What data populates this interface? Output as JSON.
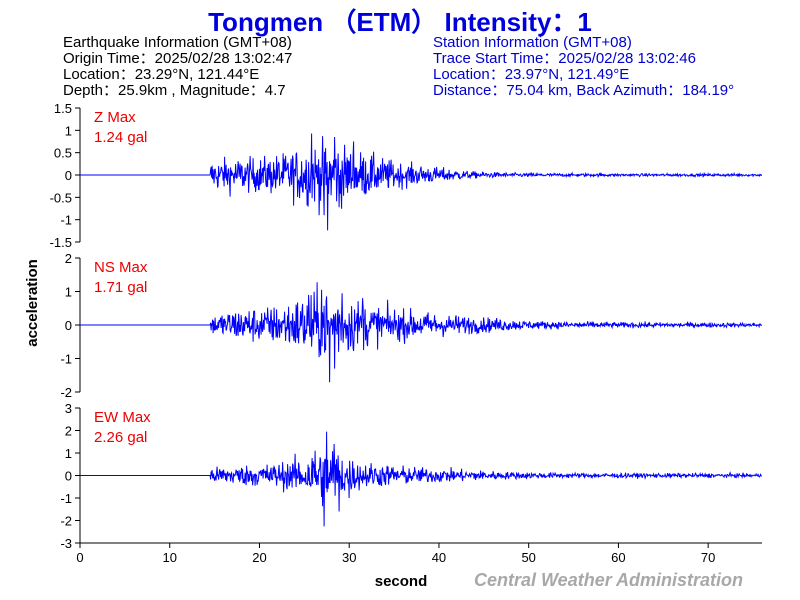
{
  "title": "Tongmen （ETM） Intensity：1",
  "earthquake": {
    "heading": "Earthquake Information  (GMT+08)",
    "origin_time": "Origin Time：2025/02/28 13:02:47",
    "location": "Location：23.29°N, 121.44°E",
    "depth_magnitude": "Depth：25.9km , Magnitude：4.7"
  },
  "station": {
    "heading": "Station Information  (GMT+08)",
    "trace_start": "Trace Start Time：2025/02/28 13:02:46",
    "location": "Location：23.97°N, 121.49°E",
    "distance": "Distance：75.04 km, Back Azimuth：184.19°"
  },
  "credit": "Central Weather Administration",
  "colors": {
    "title": "#0000dd",
    "trace": "#0000ff",
    "max_label": "#ee0000",
    "station_info": "#0000cc",
    "credit": "#a8a8a8"
  },
  "chart_data": {
    "type": "line",
    "xlabel": "second",
    "ylabel": "acceleration",
    "xlim": [
      0,
      76
    ],
    "xticks": [
      "0",
      "10",
      "20",
      "30",
      "40",
      "50",
      "60",
      "70"
    ],
    "x_tick_values": [
      0,
      10,
      20,
      30,
      40,
      50,
      60,
      70
    ],
    "grid": false,
    "series": [
      {
        "name": "Z",
        "max_label": "Z Max",
        "max_value": "1.24 gal",
        "peak": 1.24,
        "ylim": [
          -1.5,
          1.5
        ],
        "yticks": [
          1.5,
          1,
          0.5,
          0,
          -0.5,
          -1,
          -1.5
        ],
        "ytick_labels": [
          "1.5",
          "1",
          "0.5",
          "0",
          "-0.5",
          "-1",
          "-1.5"
        ],
        "onset_s": 14.5,
        "envelope": [
          [
            14.5,
            0.45
          ],
          [
            17,
            0.5
          ],
          [
            20,
            0.5
          ],
          [
            23,
            0.65
          ],
          [
            25,
            0.85
          ],
          [
            27,
            0.95
          ],
          [
            28,
            1.0
          ],
          [
            30,
            0.8
          ],
          [
            33,
            0.55
          ],
          [
            36,
            0.35
          ],
          [
            40,
            0.22
          ],
          [
            44,
            0.1
          ],
          [
            48,
            0.06
          ],
          [
            55,
            0.045
          ],
          [
            65,
            0.04
          ],
          [
            76,
            0.04
          ]
        ],
        "spikes": [
          [
            25.8,
            0.93
          ],
          [
            27.2,
            -0.9
          ],
          [
            27.6,
            -1.24
          ],
          [
            28.4,
            0.85
          ],
          [
            30.5,
            0.75
          ],
          [
            28.9,
            -0.72
          ]
        ]
      },
      {
        "name": "NS",
        "max_label": "NS Max",
        "max_value": "1.71 gal",
        "peak": 1.71,
        "ylim": [
          -2,
          2
        ],
        "yticks": [
          2,
          1,
          0,
          -1,
          -2
        ],
        "ytick_labels": [
          "2",
          "1",
          "0",
          "-1",
          "-2"
        ],
        "onset_s": 14.5,
        "envelope": [
          [
            14.5,
            0.25
          ],
          [
            17,
            0.45
          ],
          [
            20,
            0.5
          ],
          [
            22,
            0.55
          ],
          [
            24,
            0.75
          ],
          [
            26,
            0.95
          ],
          [
            28,
            1.0
          ],
          [
            30,
            0.8
          ],
          [
            33,
            0.55
          ],
          [
            37,
            0.4
          ],
          [
            42,
            0.28
          ],
          [
            46,
            0.2
          ],
          [
            50,
            0.12
          ],
          [
            55,
            0.09
          ],
          [
            65,
            0.07
          ],
          [
            76,
            0.06
          ]
        ],
        "spikes": [
          [
            25.5,
            0.9
          ],
          [
            26.9,
            1.05
          ],
          [
            27.8,
            -1.71
          ],
          [
            29.2,
            0.95
          ],
          [
            28.4,
            -1.3
          ],
          [
            31.5,
            0.8
          ]
        ]
      },
      {
        "name": "EW",
        "max_label": "EW Max",
        "max_value": "2.26 gal",
        "peak": 2.26,
        "ylim": [
          -3,
          3
        ],
        "yticks": [
          3,
          2,
          1,
          0,
          -1,
          -2,
          -3
        ],
        "ytick_labels": [
          "3",
          "2",
          "1",
          "0",
          "-1",
          "-2",
          "-3"
        ],
        "onset_s": 14.5,
        "envelope": [
          [
            14.5,
            0.25
          ],
          [
            17,
            0.3
          ],
          [
            20,
            0.35
          ],
          [
            23,
            0.45
          ],
          [
            25,
            0.6
          ],
          [
            27,
            0.95
          ],
          [
            28,
            1.0
          ],
          [
            29,
            0.75
          ],
          [
            31,
            0.45
          ],
          [
            34,
            0.35
          ],
          [
            38,
            0.25
          ],
          [
            42,
            0.2
          ],
          [
            48,
            0.11
          ],
          [
            55,
            0.08
          ],
          [
            65,
            0.07
          ],
          [
            76,
            0.06
          ]
        ],
        "spikes": [
          [
            27.5,
            1.95
          ],
          [
            27.2,
            -2.26
          ],
          [
            28.3,
            1.4
          ],
          [
            28.9,
            -1.6
          ],
          [
            26.2,
            1.1
          ],
          [
            30.0,
            -1.0
          ]
        ]
      }
    ]
  }
}
